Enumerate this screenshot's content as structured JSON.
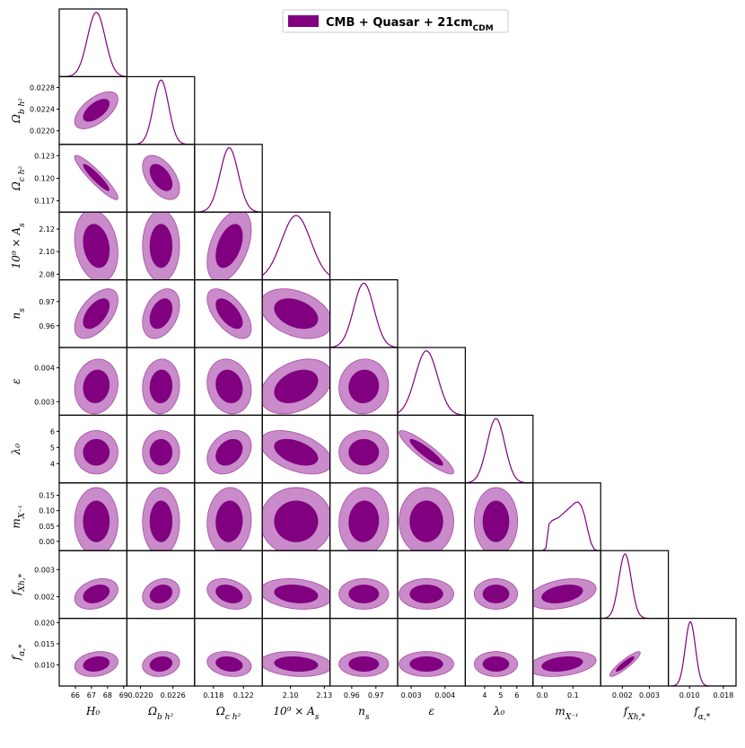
{
  "chart_data": {
    "type": "corner",
    "legend": {
      "label": "CMB + Quasar + 21cm",
      "label_sub": "CDM",
      "color": "#800080",
      "placement": "top-right"
    },
    "colors": {
      "inner": "#800080",
      "outer": "#c98bc9",
      "outer_edge": "#a64ca6",
      "line": "#800080"
    },
    "parameters": [
      {
        "label": "H₀",
        "range": [
          65.0,
          69.2
        ],
        "mean": 67.3,
        "sd": 0.55,
        "ticks": [
          66,
          67,
          68,
          69
        ],
        "tick_labels": [
          "66",
          "67",
          "68",
          "69"
        ]
      },
      {
        "label": "Ω_b h²",
        "range": [
          0.02175,
          0.023
        ],
        "mean": 0.02238,
        "sd": 0.00014,
        "ticks": [
          0.022,
          0.0224,
          0.0228
        ],
        "tick_labels": [
          "0.0220",
          "0.0224",
          "0.0228"
        ],
        "bottom_ticks": [
          0.022,
          0.0226
        ],
        "bottom_tick_labels": [
          "0.0220",
          "0.0226"
        ]
      },
      {
        "label": "Ω_c h²",
        "range": [
          0.1155,
          0.1245
        ],
        "mean": 0.1201,
        "sd": 0.0012,
        "ticks": [
          0.117,
          0.12,
          0.123
        ],
        "tick_labels": [
          "0.117",
          "0.120",
          "0.123"
        ],
        "bottom_ticks": [
          0.118,
          0.122
        ],
        "bottom_tick_labels": [
          "0.118",
          "0.122"
        ]
      },
      {
        "label": "10⁹ × A_s",
        "range": [
          2.075,
          2.135
        ],
        "mean": 2.105,
        "sd": 0.013,
        "ticks": [
          2.08,
          2.1,
          2.12
        ],
        "tick_labels": [
          "2.08",
          "2.10",
          "2.12"
        ],
        "bottom_ticks": [
          2.1,
          2.13
        ],
        "bottom_tick_labels": [
          "2.10",
          "2.13"
        ]
      },
      {
        "label": "n_s",
        "range": [
          0.951,
          0.979
        ],
        "mean": 0.965,
        "sd": 0.0042,
        "ticks": [
          0.96,
          0.97
        ],
        "tick_labels": [
          "0.96",
          "0.97"
        ]
      },
      {
        "label": "ε",
        "range": [
          0.0026,
          0.0046
        ],
        "mean": 0.00345,
        "sd": 0.00033,
        "ticks": [
          0.003,
          0.004
        ],
        "tick_labels": [
          "0.003",
          "0.004"
        ]
      },
      {
        "label": "λ₀",
        "range": [
          2.8,
          7.0
        ],
        "mean": 4.7,
        "sd": 0.55,
        "ticks": [
          4,
          5,
          6
        ],
        "tick_labels": [
          "4",
          "5",
          "6"
        ]
      },
      {
        "label": "m_X⁻¹",
        "range": [
          -0.03,
          0.19
        ],
        "mean": 0.065,
        "sd": 0.045,
        "ticks": [
          0.0,
          0.05,
          0.1,
          0.15
        ],
        "tick_labels": [
          "0.00",
          "0.05",
          "0.10",
          "0.15"
        ],
        "bottom_ticks": [
          0.0,
          0.1
        ],
        "bottom_tick_labels": [
          "0.0",
          "0.1"
        ],
        "hist": [
          0,
          0,
          0,
          0,
          0.05,
          0.55,
          0.62,
          0.65,
          0.68,
          0.74,
          0.8,
          0.86,
          0.92,
          0.98,
          1.0,
          0.92,
          0.72,
          0.42,
          0.16,
          0.03,
          0,
          0
        ]
      },
      {
        "label": "f_Xh,*",
        "range": [
          0.0012,
          0.0037
        ],
        "mean": 0.0021,
        "sd": 0.00023,
        "ticks": [
          0.002,
          0.003
        ],
        "tick_labels": [
          "0.002",
          "0.003"
        ]
      },
      {
        "label": "f_α,*",
        "range": [
          0.005,
          0.021
        ],
        "mean": 0.0102,
        "sd": 0.0012,
        "ticks": [
          0.01,
          0.015,
          0.02
        ],
        "tick_labels": [
          "0.010",
          "0.015",
          "0.020"
        ],
        "bottom_ticks": [
          0.01,
          0.018
        ],
        "bottom_tick_labels": [
          "0.010",
          "0.018"
        ]
      }
    ],
    "correlations": {
      "1,0": 0.6,
      "2,0": -0.92,
      "2,1": -0.5,
      "3,0": -0.2,
      "3,1": 0.0,
      "3,2": 0.45,
      "4,0": 0.55,
      "4,1": 0.35,
      "4,2": -0.6,
      "4,3": -0.35,
      "5,0": 0.1,
      "5,1": 0.05,
      "5,2": -0.15,
      "5,3": 0.35,
      "5,4": 0.05,
      "6,0": 0.0,
      "6,1": 0.0,
      "6,2": 0.3,
      "6,3": -0.45,
      "6,4": 0.0,
      "6,5": -0.9,
      "7,0": 0.0,
      "7,1": 0.0,
      "7,2": 0.05,
      "7,3": 0.0,
      "7,4": 0.05,
      "7,5": 0.0,
      "7,6": 0.0,
      "8,0": 0.3,
      "8,1": 0.2,
      "8,2": -0.3,
      "8,3": -0.2,
      "8,4": 0.0,
      "8,5": 0.0,
      "8,6": 0.0,
      "8,7": 0.35,
      "9,0": 0.2,
      "9,1": 0.15,
      "9,2": -0.2,
      "9,3": -0.15,
      "9,4": 0.0,
      "9,5": 0.0,
      "9,6": 0.0,
      "9,7": 0.3,
      "9,8": 0.9
    },
    "grid": false
  }
}
